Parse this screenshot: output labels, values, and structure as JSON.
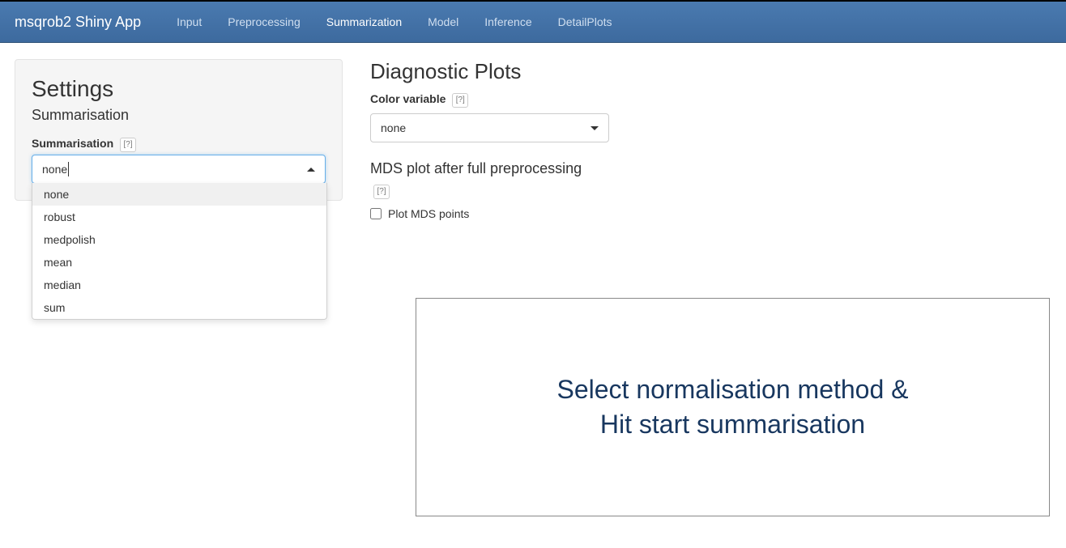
{
  "navbar": {
    "brand": "msqrob2 Shiny App",
    "items": [
      "Input",
      "Preprocessing",
      "Summarization",
      "Model",
      "Inference",
      "DetailPlots"
    ],
    "active_index": 2
  },
  "settings": {
    "title": "Settings",
    "subtitle": "Summarisation",
    "summarisation_label": "Summarisation",
    "help_glyph": "[?]",
    "selected_value": "none",
    "options": [
      "none",
      "robust",
      "medpolish",
      "mean",
      "median",
      "sum"
    ]
  },
  "diagnostic": {
    "title": "Diagnostic Plots",
    "color_var_label": "Color variable",
    "color_var_value": "none",
    "mds_heading": "MDS plot after full preprocessing",
    "checkbox_label": "Plot MDS points",
    "checkbox_checked": false
  },
  "overlay": {
    "line1": "Select normalisation method &",
    "line2": "Hit start summarisation"
  },
  "colors": {
    "navbar_bg_top": "#4a7ab0",
    "navbar_bg_bottom": "#3d6a9e",
    "panel_bg": "#f5f5f5",
    "focus_border": "#66afe9",
    "overlay_text": "#18375f"
  }
}
